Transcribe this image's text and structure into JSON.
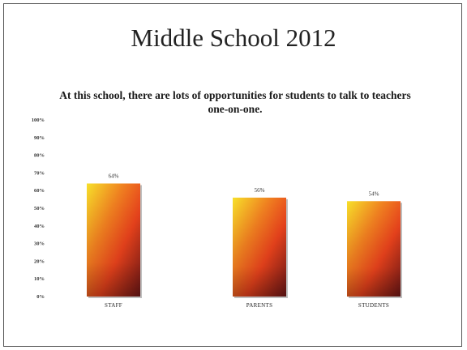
{
  "slide": {
    "title": "Middle School 2012"
  },
  "chart_data": {
    "type": "bar",
    "title": "At this school, there are lots of opportunities for students to talk to teachers one-on-one.",
    "categories": [
      "STAFF",
      "PARENTS",
      "STUDENTS"
    ],
    "values": [
      64,
      56,
      54
    ],
    "data_labels": [
      "64%",
      "56%",
      "54%"
    ],
    "y_ticks": [
      "0%",
      "10%",
      "20%",
      "30%",
      "40%",
      "50%",
      "60%",
      "70%",
      "80%",
      "90%",
      "100%"
    ],
    "ylim": [
      0,
      100
    ],
    "grid": false,
    "legend": "none",
    "bar_colors": {
      "top_left": "#f7e02a",
      "middle": "#e8421c",
      "bottom_right": "#6e1616"
    }
  }
}
